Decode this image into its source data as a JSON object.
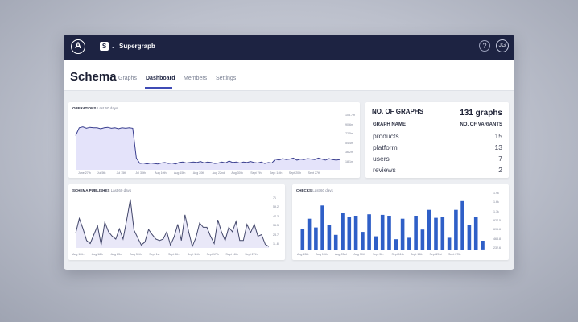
{
  "app": {
    "logo_letter": "A",
    "graph_badge": "S",
    "graph_name": "Supergraph",
    "avatar_initials": "JG",
    "help_glyph": "?"
  },
  "header": {
    "title": "Schema",
    "tabs": [
      {
        "label": "Graphs",
        "active": false
      },
      {
        "label": "Dashboard",
        "active": true
      },
      {
        "label": "Members",
        "active": false
      },
      {
        "label": "Settings",
        "active": false
      }
    ]
  },
  "operations": {
    "title": "OPERATIONS",
    "subtitle": "Last 60 days",
    "y_ticks": [
      "108.7m",
      "90.6m",
      "72.5m",
      "54.4m",
      "36.2m",
      "18.1m"
    ],
    "x_ticks": [
      "June 27th",
      "Jul 5th",
      "Jul 15th",
      "Jul 30th",
      "Aug 10th",
      "Aug 15th",
      "Aug 20th",
      "Aug 22nd",
      "Aug 30th",
      "Sept 7th",
      "Sept 14th",
      "Sept 20th",
      "Sept 27th"
    ]
  },
  "graphs_table": {
    "title": "NO. OF GRAPHS",
    "count": "131 graphs",
    "col_name": "GRAPH NAME",
    "col_variants": "NO. OF VARIANTS",
    "rows": [
      {
        "name": "products",
        "variants": "15"
      },
      {
        "name": "platform",
        "variants": "13"
      },
      {
        "name": "users",
        "variants": "7"
      },
      {
        "name": "reviews",
        "variants": "2"
      }
    ]
  },
  "publishes": {
    "title": "SCHEMA PUBLISHES",
    "subtitle": "Last 60 days",
    "y_ticks": [
      "71",
      "59.2",
      "47.3",
      "35.5",
      "23.7",
      "11.8"
    ],
    "x_ticks": [
      "Aug 12th",
      "Aug 18th",
      "Aug 23rd",
      "Aug 30th",
      "Sept 1st",
      "Sept 5th",
      "Sept 11th",
      "Sept 17th",
      "Sept 18th",
      "Sept 27th"
    ]
  },
  "checks": {
    "title": "CHECKS",
    "subtitle": "Last 60 days",
    "y_ticks": [
      "1.9k",
      "1.6k",
      "1.3k",
      "927.5",
      "695.6",
      "463.8",
      "232.6"
    ],
    "x_ticks": [
      "Aug 13th",
      "Aug 19th",
      "Aug 23rd",
      "Aug 30th",
      "Sept 5th",
      "Sept 11th",
      "Sept 15th",
      "Sept 21st",
      "Sept 27th"
    ]
  },
  "chart_data": [
    {
      "type": "area",
      "title": "OPERATIONS",
      "ylim": [
        0,
        108.7
      ],
      "values": [
        70,
        86,
        88,
        85,
        87,
        86,
        86,
        84,
        86,
        87,
        85,
        86,
        84,
        86,
        85,
        86,
        85,
        24,
        13,
        14,
        12,
        14,
        13,
        12,
        14,
        15,
        13,
        14,
        12,
        15,
        16,
        14,
        15,
        16,
        15,
        17,
        14,
        16,
        15,
        13,
        14,
        16,
        14,
        18,
        15,
        16,
        14,
        16,
        15,
        17,
        15,
        14,
        16,
        13,
        15,
        14,
        22,
        20,
        23,
        21,
        22,
        24,
        20,
        22,
        21,
        23,
        22,
        21,
        24,
        22,
        20,
        23,
        21,
        20,
        21
      ]
    },
    {
      "type": "area",
      "title": "SCHEMA PUBLISHES",
      "ylim": [
        0,
        71
      ],
      "values": [
        20,
        40,
        26,
        10,
        6,
        18,
        30,
        4,
        35,
        22,
        16,
        12,
        26,
        12,
        38,
        66,
        24,
        14,
        4,
        8,
        25,
        18,
        12,
        10,
        12,
        22,
        4,
        15,
        32,
        10,
        45,
        22,
        2,
        14,
        34,
        28,
        28,
        16,
        6,
        38,
        22,
        10,
        28,
        22,
        36,
        10,
        10,
        32,
        21,
        32,
        16,
        18,
        5,
        2
      ]
    },
    {
      "type": "bar",
      "title": "CHECKS",
      "ylim": [
        0,
        2000
      ],
      "values": [
        700,
        1050,
        750,
        1500,
        850,
        500,
        1250,
        1100,
        1150,
        600,
        1200,
        450,
        1180,
        1150,
        350,
        1050,
        400,
        1150,
        680,
        1350,
        1080,
        1100,
        400,
        1350,
        1650,
        850,
        1120,
        300
      ]
    }
  ]
}
